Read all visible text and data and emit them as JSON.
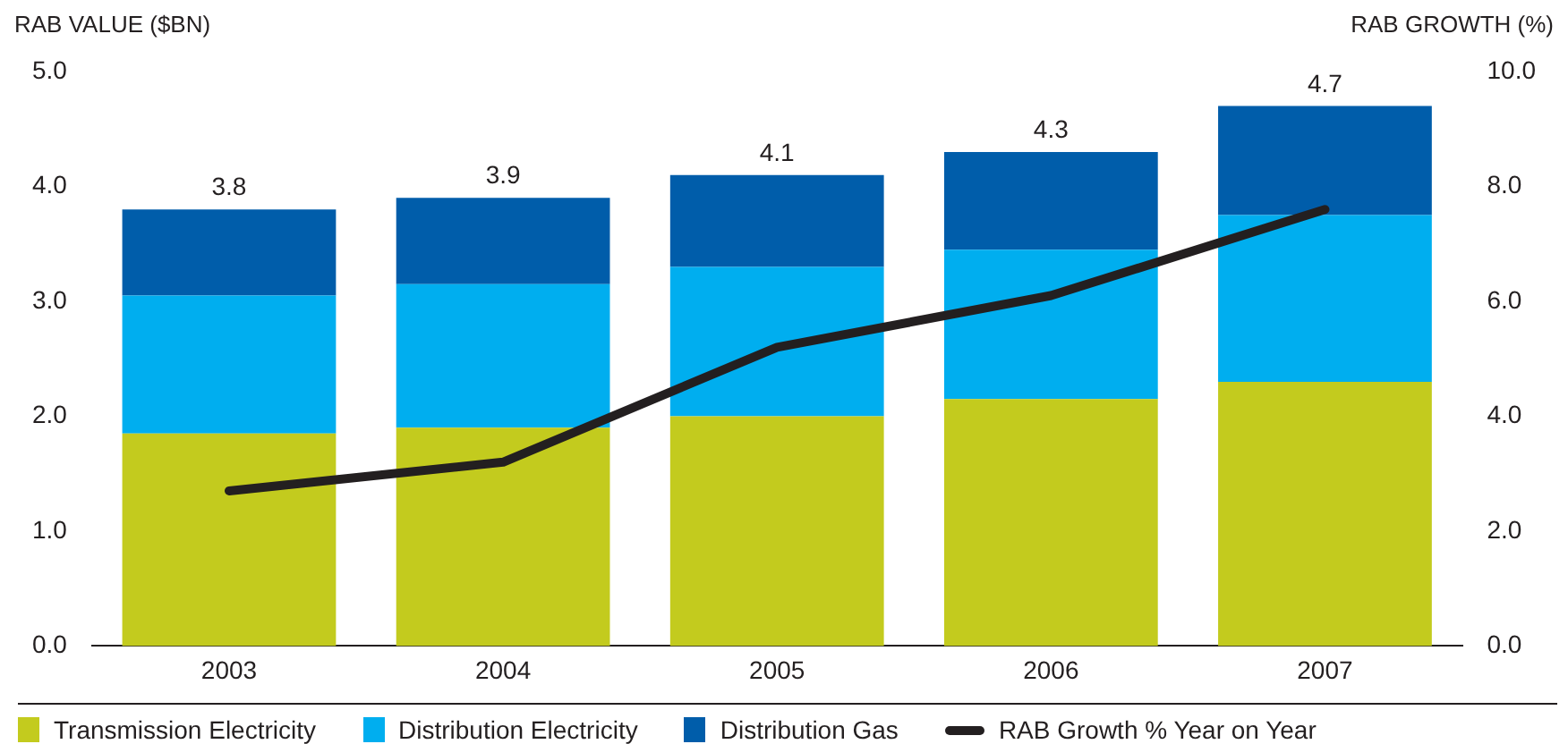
{
  "chart_data": {
    "type": "bar",
    "stacked": true,
    "ylabel": "RAB VALUE ($BN)",
    "y2label": "RAB GROWTH (%)",
    "categories": [
      "2003",
      "2004",
      "2005",
      "2006",
      "2007"
    ],
    "series": [
      {
        "name": "Transmission Electricity",
        "color": "#c3cb1e",
        "values": [
          1.85,
          1.9,
          2.0,
          2.15,
          2.3
        ]
      },
      {
        "name": "Distribution Electricity",
        "color": "#00aeef",
        "values": [
          1.2,
          1.25,
          1.3,
          1.3,
          1.45
        ]
      },
      {
        "name": "Distribution Gas",
        "color": "#005daa",
        "values": [
          0.75,
          0.75,
          0.8,
          0.85,
          0.95
        ]
      },
      {
        "name": "RAB Growth % Year on Year",
        "type": "line",
        "axis": "y2",
        "color": "#231f20",
        "values": [
          2.7,
          3.2,
          5.2,
          6.1,
          7.6
        ]
      }
    ],
    "totals": [
      "3.8",
      "3.9",
      "4.1",
      "4.3",
      "4.7"
    ],
    "ylim": [
      0,
      5
    ],
    "yticks": [
      {
        "value": 0,
        "label": "0.0"
      },
      {
        "value": 1,
        "label": "1.0"
      },
      {
        "value": 2,
        "label": "2.0"
      },
      {
        "value": 3,
        "label": "3.0"
      },
      {
        "value": 4,
        "label": "4.0"
      },
      {
        "value": 5,
        "label": "5.0"
      }
    ],
    "y2lim": [
      0,
      10
    ],
    "y2ticks": [
      {
        "value": 0,
        "label": "0.0"
      },
      {
        "value": 2,
        "label": "2.0"
      },
      {
        "value": 4,
        "label": "4.0"
      },
      {
        "value": 6,
        "label": "6.0"
      },
      {
        "value": 8,
        "label": "8.0"
      },
      {
        "value": 10,
        "label": "10.0"
      }
    ],
    "grid": false,
    "legend": "bottom",
    "marker": "none"
  }
}
